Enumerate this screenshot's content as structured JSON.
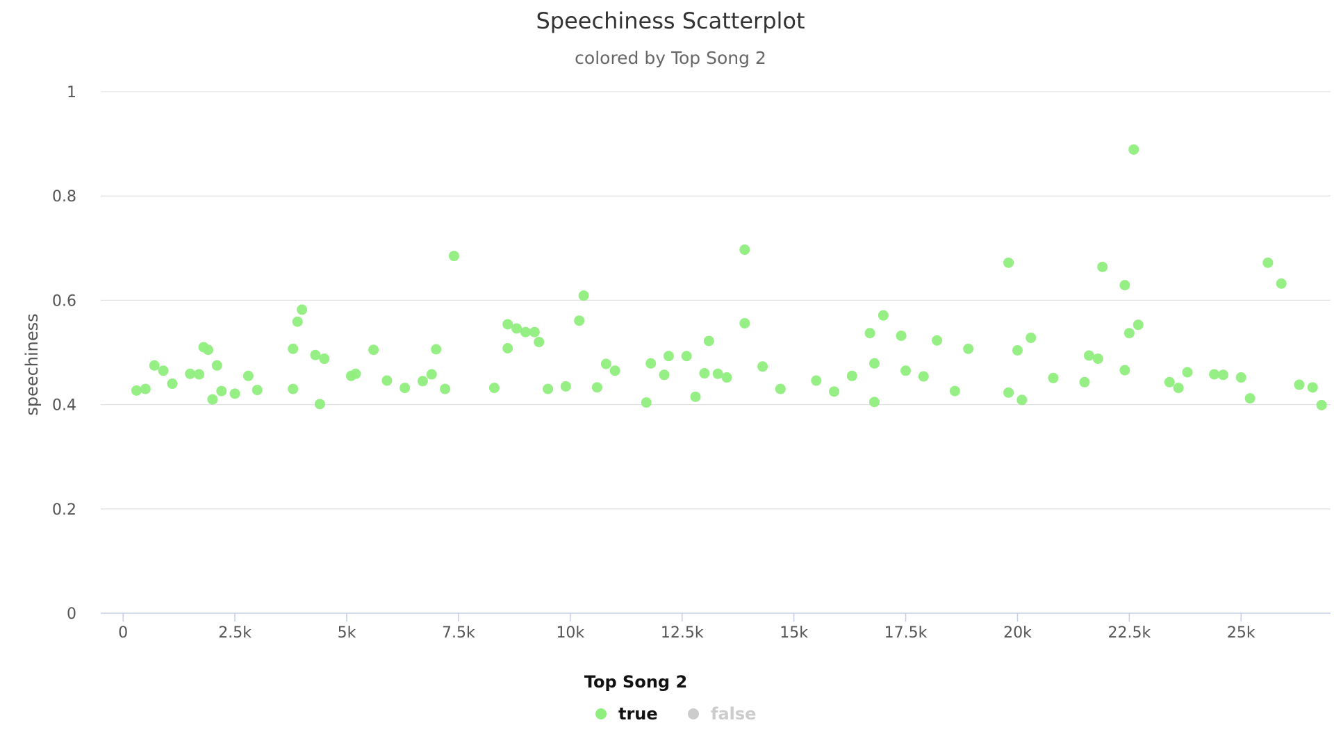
{
  "chart_data": {
    "type": "scatter",
    "title": "Speechiness Scatterplot",
    "subtitle": "colored by Top Song 2",
    "xlabel": "",
    "ylabel": "speechiness",
    "xlim": [
      -500,
      27000
    ],
    "ylim": [
      0,
      1
    ],
    "x_ticks": [
      0,
      2500,
      5000,
      7500,
      10000,
      12500,
      15000,
      17500,
      20000,
      22500,
      25000
    ],
    "x_tick_labels": [
      "0",
      "2.5k",
      "5k",
      "7.5k",
      "10k",
      "12.5k",
      "15k",
      "17.5k",
      "20k",
      "22.5k",
      "25k"
    ],
    "y_ticks": [
      0,
      0.2,
      0.4,
      0.6,
      0.8,
      1
    ],
    "y_tick_labels": [
      "0",
      "0.2",
      "0.4",
      "0.6",
      "0.8",
      "1"
    ],
    "grid": true,
    "legend": {
      "title": "Top Song 2",
      "placement": "bottom-center",
      "items": [
        {
          "label": "true",
          "color": "#90ee7e",
          "active": true
        },
        {
          "label": "false",
          "color": "#cccccc",
          "active": false
        }
      ]
    },
    "series": [
      {
        "name": "true",
        "color": "#90ee7e",
        "points": [
          [
            7400,
            0.685
          ],
          [
            13900,
            0.697
          ],
          [
            22600,
            0.889
          ],
          [
            19800,
            0.672
          ],
          [
            21900,
            0.664
          ],
          [
            22400,
            0.629
          ],
          [
            25600,
            0.672
          ],
          [
            25900,
            0.632
          ],
          [
            10300,
            0.609
          ],
          [
            10200,
            0.561
          ],
          [
            4000,
            0.582
          ],
          [
            3900,
            0.559
          ],
          [
            13900,
            0.556
          ],
          [
            17000,
            0.571
          ],
          [
            8600,
            0.554
          ],
          [
            8800,
            0.546
          ],
          [
            9000,
            0.539
          ],
          [
            9200,
            0.539
          ],
          [
            22700,
            0.553
          ],
          [
            22500,
            0.537
          ],
          [
            16700,
            0.537
          ],
          [
            1800,
            0.51
          ],
          [
            1900,
            0.505
          ],
          [
            3800,
            0.507
          ],
          [
            5600,
            0.505
          ],
          [
            7000,
            0.506
          ],
          [
            8600,
            0.508
          ],
          [
            9300,
            0.52
          ],
          [
            13100,
            0.522
          ],
          [
            17400,
            0.532
          ],
          [
            18900,
            0.507
          ],
          [
            20000,
            0.504
          ],
          [
            20300,
            0.528
          ],
          [
            18200,
            0.523
          ],
          [
            4300,
            0.495
          ],
          [
            4500,
            0.488
          ],
          [
            12200,
            0.493
          ],
          [
            12600,
            0.493
          ],
          [
            21600,
            0.494
          ],
          [
            21800,
            0.488
          ],
          [
            700,
            0.475
          ],
          [
            900,
            0.465
          ],
          [
            2100,
            0.475
          ],
          [
            6900,
            0.458
          ],
          [
            10800,
            0.478
          ],
          [
            11000,
            0.465
          ],
          [
            11800,
            0.479
          ],
          [
            14300,
            0.473
          ],
          [
            16800,
            0.479
          ],
          [
            17500,
            0.465
          ],
          [
            17900,
            0.454
          ],
          [
            19800,
            0.423
          ],
          [
            22400,
            0.466
          ],
          [
            23800,
            0.462
          ],
          [
            24400,
            0.458
          ],
          [
            24600,
            0.457
          ],
          [
            25000,
            0.452
          ],
          [
            1500,
            0.459
          ],
          [
            1700,
            0.458
          ],
          [
            2800,
            0.455
          ],
          [
            5100,
            0.455
          ],
          [
            5200,
            0.459
          ],
          [
            12100,
            0.457
          ],
          [
            13000,
            0.46
          ],
          [
            13300,
            0.459
          ],
          [
            300,
            0.427
          ],
          [
            500,
            0.43
          ],
          [
            1100,
            0.44
          ],
          [
            2000,
            0.41
          ],
          [
            2200,
            0.426
          ],
          [
            2500,
            0.421
          ],
          [
            3000,
            0.428
          ],
          [
            3800,
            0.43
          ],
          [
            4400,
            0.401
          ],
          [
            5900,
            0.446
          ],
          [
            6300,
            0.432
          ],
          [
            6700,
            0.445
          ],
          [
            7200,
            0.43
          ],
          [
            8300,
            0.432
          ],
          [
            9500,
            0.43
          ],
          [
            9900,
            0.435
          ],
          [
            10600,
            0.433
          ],
          [
            11700,
            0.404
          ],
          [
            13500,
            0.452
          ],
          [
            14700,
            0.43
          ],
          [
            15500,
            0.446
          ],
          [
            15900,
            0.425
          ],
          [
            16300,
            0.455
          ],
          [
            18600,
            0.426
          ],
          [
            20800,
            0.451
          ],
          [
            21500,
            0.443
          ],
          [
            23400,
            0.443
          ],
          [
            23600,
            0.432
          ],
          [
            25200,
            0.412
          ],
          [
            26300,
            0.438
          ],
          [
            26600,
            0.433
          ],
          [
            26800,
            0.399
          ],
          [
            20100,
            0.409
          ],
          [
            12800,
            0.415
          ],
          [
            16800,
            0.405
          ]
        ]
      }
    ]
  }
}
